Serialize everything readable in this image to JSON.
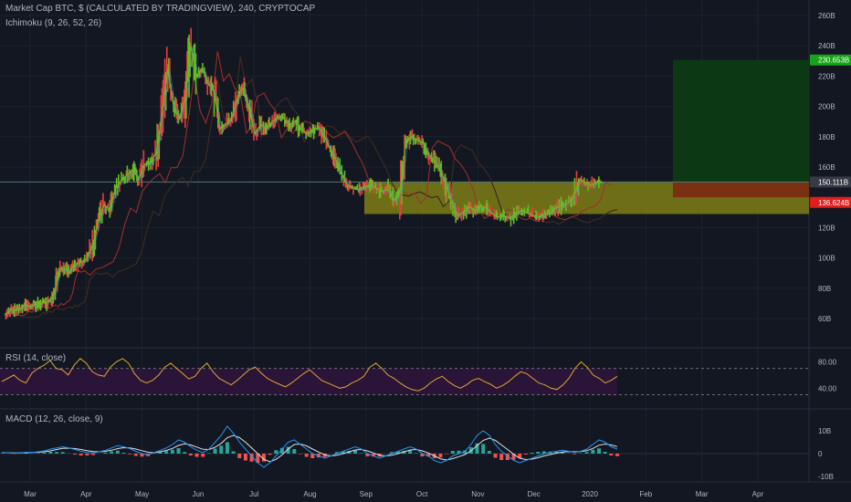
{
  "header": {
    "main_title": "Market Cap BTC, $ (CALCULATED BY TRADINGVIEW), 240, CRYPTOCAP",
    "ichimoku_label": "Ichimoku (9, 26, 52, 26)",
    "rsi_label": "RSI (14, close)",
    "macd_label": "MACD (12, 26, close, 9)"
  },
  "colors": {
    "background": "#131722",
    "grid": "#1e222d",
    "axis_text": "#b2b5be",
    "candle_up": "#66bb22",
    "candle_down": "#e83e3e",
    "ichimoku_line_red": "#a3302a",
    "ichimoku_line_blue": "#2d8fd8",
    "support_zone": "#8c8c14",
    "target_zone": "#0c3a14",
    "stop_zone": "#7a2a12",
    "rsi_line": "#e3a52f",
    "rsi_band": "#2a1438",
    "macd_line": "#2196f3",
    "signal_line": "#e0e0e0",
    "hist_pos": "#26a69a",
    "hist_neg": "#ef5350",
    "tag_green": "#17a317",
    "tag_red": "#e01e1e",
    "tag_last": "#363a45"
  },
  "chart_data": [
    {
      "type": "line",
      "pane": "price",
      "title": "Market Cap BTC, $ (CALCULATED BY TRADINGVIEW), 240, CRYPTOCAP",
      "y_unit": "billion USD",
      "y_ticks": [
        "260B",
        "240B",
        "220B",
        "200B",
        "180B",
        "160B",
        "120B",
        "100B",
        "80B",
        "60B"
      ],
      "y_range": [
        60,
        260
      ],
      "x_ticks": [
        "Mar",
        "Apr",
        "May",
        "Jun",
        "Jul",
        "Aug",
        "Sep",
        "Oct",
        "Nov",
        "Dec",
        "2020",
        "Feb",
        "Mar",
        "Apr"
      ],
      "series": [
        {
          "x": [
            0,
            0.05,
            0.1,
            0.15,
            0.2,
            0.25,
            0.3,
            0.35,
            0.4,
            0.45,
            0.5,
            0.55,
            0.6,
            0.65,
            0.7,
            0.75,
            0.8,
            0.85,
            0.9,
            0.95,
            1.0,
            1.05,
            1.1,
            1.15,
            1.2,
            1.3,
            1.4,
            1.5,
            1.6,
            1.7,
            1.8,
            1.9,
            2.0,
            2.1,
            2.2,
            2.3,
            2.4,
            2.5,
            2.6,
            2.7,
            2.8,
            2.9,
            3.0,
            3.1,
            3.2,
            3.3,
            3.4,
            3.5,
            3.6,
            3.7,
            3.8,
            3.9,
            4.0,
            4.05,
            4.1,
            4.15,
            4.2,
            4.3,
            4.4,
            4.5,
            4.6,
            4.7,
            4.8,
            4.9,
            5.0,
            5.1,
            5.2,
            5.3,
            5.4,
            5.5,
            5.6,
            5.7,
            5.8,
            5.9,
            6.0,
            6.1,
            6.2,
            6.3,
            6.4,
            6.5,
            6.6,
            6.7,
            6.8,
            6.9,
            7.0,
            7.1,
            7.2,
            7.3,
            7.4,
            7.5,
            7.6,
            7.7,
            7.8,
            7.9,
            8.0,
            8.1,
            8.2,
            8.3,
            8.4,
            8.5,
            8.6,
            8.7,
            8.8,
            8.9,
            9.0,
            9.1,
            9.2,
            9.3,
            9.4,
            9.5,
            9.6,
            9.7,
            9.8,
            9.9,
            10.0,
            10.1,
            10.2,
            10.3
          ],
          "y": [
            63,
            64,
            66,
            65,
            67,
            66,
            68,
            69,
            68,
            68,
            69,
            70,
            69,
            71,
            70,
            72,
            73,
            78,
            88,
            93,
            92,
            93,
            90,
            94,
            95,
            97,
            99,
            108,
            124,
            135,
            132,
            146,
            151,
            155,
            158,
            152,
            162,
            162,
            170,
            195,
            225,
            200,
            192,
            205,
            240,
            220,
            225,
            215,
            210,
            185,
            188,
            192,
            205,
            210,
            212,
            205,
            200,
            182,
            188,
            185,
            190,
            193,
            192,
            188,
            190,
            185,
            182,
            184,
            186,
            180,
            172,
            165,
            155,
            148,
            146,
            145,
            147,
            148,
            146,
            144,
            145,
            138,
            142,
            175,
            180,
            178,
            176,
            168,
            164,
            158,
            148,
            136,
            128,
            130,
            134,
            131,
            134,
            133,
            129,
            127,
            128,
            126,
            129,
            131,
            130,
            128,
            127,
            129,
            130,
            133,
            135,
            136,
            140,
            152,
            150,
            148,
            150,
            150
          ],
          "name": ""
        }
      ],
      "annotations": {
        "support_zone_low_B": 129,
        "support_zone_high_B": 150,
        "target_price_B": 230.653,
        "entry_price_B": 150.111,
        "stop_zone_low_B": 140,
        "stop_price_B": 136.624
      },
      "price_tags": [
        {
          "label": "230.653B",
          "value": 230.653,
          "color": "tag_green"
        },
        {
          "label": "150.111B",
          "value": 150.111,
          "color": "tag_last"
        },
        {
          "label": "136.624B",
          "value": 136.624,
          "color": "tag_red"
        }
      ]
    },
    {
      "type": "line",
      "pane": "rsi",
      "title": "RSI (14, close)",
      "y_ticks": [
        "80.00",
        "40.00"
      ],
      "y_range": [
        10,
        100
      ],
      "band": [
        70,
        30
      ],
      "series": [
        {
          "name": "",
          "values": [
            50,
            55,
            60,
            52,
            48,
            63,
            70,
            75,
            82,
            70,
            68,
            60,
            75,
            85,
            78,
            65,
            60,
            58,
            72,
            80,
            85,
            78,
            62,
            52,
            48,
            52,
            60,
            72,
            78,
            70,
            62,
            54,
            58,
            70,
            78,
            65,
            55,
            50,
            45,
            52,
            60,
            68,
            72,
            63,
            55,
            50,
            46,
            42,
            48,
            55,
            62,
            68,
            60,
            52,
            48,
            44,
            40,
            42,
            48,
            52,
            58,
            72,
            78,
            70,
            60,
            55,
            48,
            42,
            38,
            36,
            40,
            48,
            54,
            58,
            50,
            44,
            40,
            45,
            52,
            55,
            50,
            46,
            40,
            44,
            50,
            58,
            65,
            62,
            55,
            48,
            45,
            40,
            38,
            45,
            55,
            70,
            80,
            72,
            60,
            55,
            48,
            52,
            58
          ]
        }
      ]
    },
    {
      "type": "line",
      "pane": "macd",
      "title": "MACD (12, 26, close, 9)",
      "y_ticks": [
        "10B",
        "0",
        "-10B"
      ],
      "y_range": [
        -12,
        12
      ],
      "series": [
        {
          "name": "",
          "values": [
            0.5,
            0.4,
            0.2,
            0.3,
            0.6,
            0.5,
            0.8,
            1.2,
            2,
            2.5,
            3,
            2.5,
            1.8,
            1,
            0.5,
            0.3,
            0.8,
            1.5,
            2.5,
            3.5,
            3,
            2.2,
            1,
            0,
            -0.5,
            0.5,
            1.5,
            2.5,
            4,
            6,
            5,
            3,
            1.5,
            0.5,
            2,
            5,
            8,
            12,
            9,
            5,
            2,
            -1,
            -4,
            -6,
            -4,
            -1,
            2,
            5,
            6,
            4,
            2,
            0,
            -1,
            -2,
            -1,
            0,
            1,
            2,
            3,
            2,
            0,
            -1,
            -2,
            -1,
            0,
            1,
            2,
            3,
            2,
            0,
            -1,
            -3,
            -4,
            -3,
            -1,
            0,
            1,
            4,
            8,
            10,
            8,
            4,
            1,
            -1,
            -3,
            -4,
            -3,
            -2,
            -1,
            0,
            0.5,
            1,
            1.5,
            1,
            0.5,
            1,
            2,
            4,
            6,
            5,
            3,
            2
          ]
        },
        {
          "name": "",
          "values": [
            0.4,
            0.4,
            0.3,
            0.3,
            0.4,
            0.5,
            0.6,
            0.8,
            1.2,
            1.8,
            2.3,
            2.4,
            2.2,
            1.8,
            1.3,
            0.9,
            0.8,
            1,
            1.5,
            2.2,
            2.6,
            2.5,
            2,
            1.3,
            0.6,
            0.4,
            0.8,
            1.4,
            2.3,
            3.6,
            4.3,
            3.8,
            2.9,
            1.9,
            1.8,
            2.8,
            4.5,
            7,
            8,
            7,
            5,
            2.5,
            0,
            -2.5,
            -3.5,
            -2.5,
            -0.5,
            2,
            4,
            4.2,
            3.4,
            2,
            0.7,
            -0.5,
            -1,
            -0.7,
            0,
            0.8,
            1.6,
            1.8,
            1.2,
            0.3,
            -0.7,
            -1,
            -0.7,
            0,
            0.8,
            1.6,
            1.8,
            1.2,
            0.3,
            -1,
            -2.3,
            -2.8,
            -2.2,
            -1.3,
            -0.4,
            1.2,
            3.5,
            5.8,
            6.8,
            5.8,
            3.8,
            1.8,
            -0.3,
            -2,
            -2.6,
            -2.4,
            -1.8,
            -1,
            -0.4,
            0.2,
            0.7,
            0.9,
            0.8,
            0.9,
            1.3,
            2.3,
            3.7,
            4.2,
            3.8,
            3.1
          ]
        }
      ]
    }
  ]
}
